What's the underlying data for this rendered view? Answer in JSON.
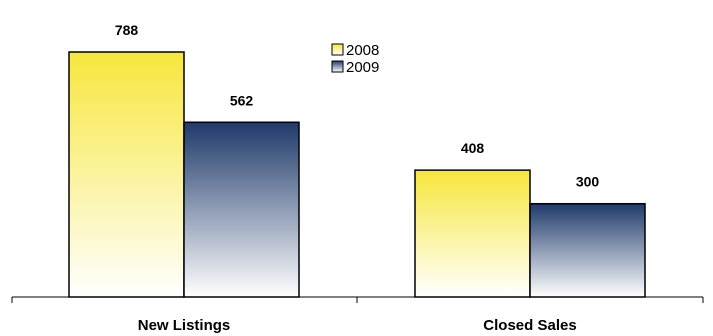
{
  "chart_data": {
    "type": "bar",
    "title": "",
    "xlabel": "",
    "ylabel": "",
    "categories": [
      "New Listings",
      "Closed Sales"
    ],
    "series": [
      {
        "name": "2008",
        "values": [
          788,
          408
        ],
        "color": "#f7e63c"
      },
      {
        "name": "2009",
        "values": [
          562,
          300
        ],
        "color": "#1f3a6b"
      }
    ],
    "ylim": [
      0,
      788
    ],
    "grid": false,
    "legend": "top-center"
  }
}
